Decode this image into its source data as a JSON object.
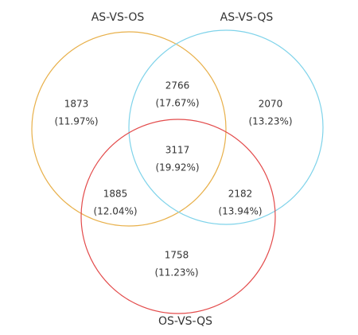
{
  "chart_data": {
    "type": "venn",
    "sets": [
      {
        "name": "AS-VS-OS",
        "color": "#e8b04a"
      },
      {
        "name": "AS-VS-QS",
        "color": "#7fd3ea"
      },
      {
        "name": "OS-VS-QS",
        "color": "#e34b4b"
      }
    ],
    "regions": [
      {
        "value": 1873,
        "label": "(11.97%)"
      },
      {
        "value": 2766,
        "label": "(17.67%)"
      },
      {
        "value": 2070,
        "label": "(13.23%)"
      },
      {
        "value": 3117,
        "label": "(19.92%)"
      },
      {
        "value": 1885,
        "label": "(12.04%)"
      },
      {
        "value": 2182,
        "label": "(13.94%)"
      },
      {
        "value": 1758,
        "label": "(11.23%)"
      }
    ]
  }
}
